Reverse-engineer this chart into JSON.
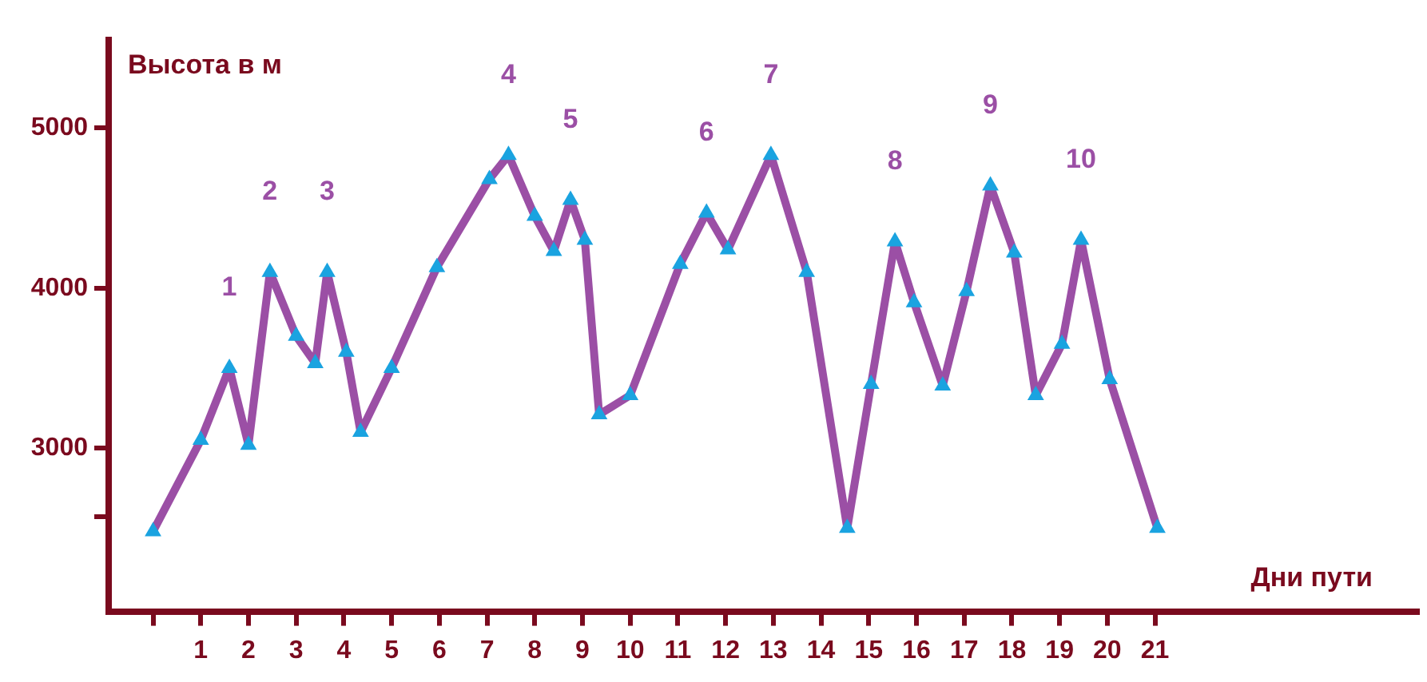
{
  "chart_data": {
    "type": "line",
    "xlabel": "Дни пути",
    "ylabel": "Высота в м",
    "x": [
      0,
      1.0,
      1.6,
      2.0,
      2.45,
      3.0,
      3.4,
      3.65,
      4.05,
      4.35,
      5.0,
      5.95,
      7.05,
      7.45,
      8.0,
      8.4,
      8.75,
      9.05,
      9.35,
      10.0,
      11.05,
      11.6,
      12.05,
      12.95,
      13.7,
      14.55,
      15.05,
      15.55,
      15.95,
      16.55,
      17.05,
      17.55,
      18.05,
      18.5,
      19.05,
      19.45,
      20.05,
      21.05
    ],
    "series": [
      {
        "color": "#9b4fa5",
        "values": [
          2480,
          3050,
          3500,
          3020,
          4100,
          3700,
          3530,
          4100,
          3600,
          3100,
          3500,
          4130,
          4680,
          4830,
          4450,
          4230,
          4550,
          4300,
          3210,
          3330,
          4150,
          4470,
          4240,
          4830,
          4100,
          2500,
          3400,
          4290,
          3910,
          3390,
          3980,
          4640,
          4220,
          3330,
          3650,
          4300,
          3430,
          2500
        ]
      }
    ],
    "marker": "triangle",
    "xlim": [
      -0.93,
      26.5
    ],
    "xticks": [
      {
        "value": 0,
        "label": null
      },
      1,
      2,
      3,
      4,
      5,
      6,
      7,
      8,
      9,
      10,
      11,
      12,
      13,
      14,
      15,
      16,
      17,
      18,
      19,
      20,
      21
    ],
    "ylim": [
      1980,
      5550
    ],
    "yticks": [
      {
        "value": 2570,
        "label": null
      },
      3000,
      4000,
      5000
    ],
    "grid": false,
    "annotations": [
      {
        "text": "1",
        "x": 1.6,
        "y": 3500
      },
      {
        "text": "2",
        "x": 2.45,
        "y": 4100
      },
      {
        "text": "3",
        "x": 3.65,
        "y": 4100
      },
      {
        "text": "4",
        "x": 7.45,
        "y": 4830
      },
      {
        "text": "5",
        "x": 8.75,
        "y": 4550
      },
      {
        "text": "6",
        "x": 11.6,
        "y": 4470
      },
      {
        "text": "7",
        "x": 12.95,
        "y": 4830
      },
      {
        "text": "8",
        "x": 15.55,
        "y": 4290
      },
      {
        "text": "9",
        "x": 17.55,
        "y": 4640
      },
      {
        "text": "10",
        "x": 19.45,
        "y": 4300
      }
    ]
  }
}
